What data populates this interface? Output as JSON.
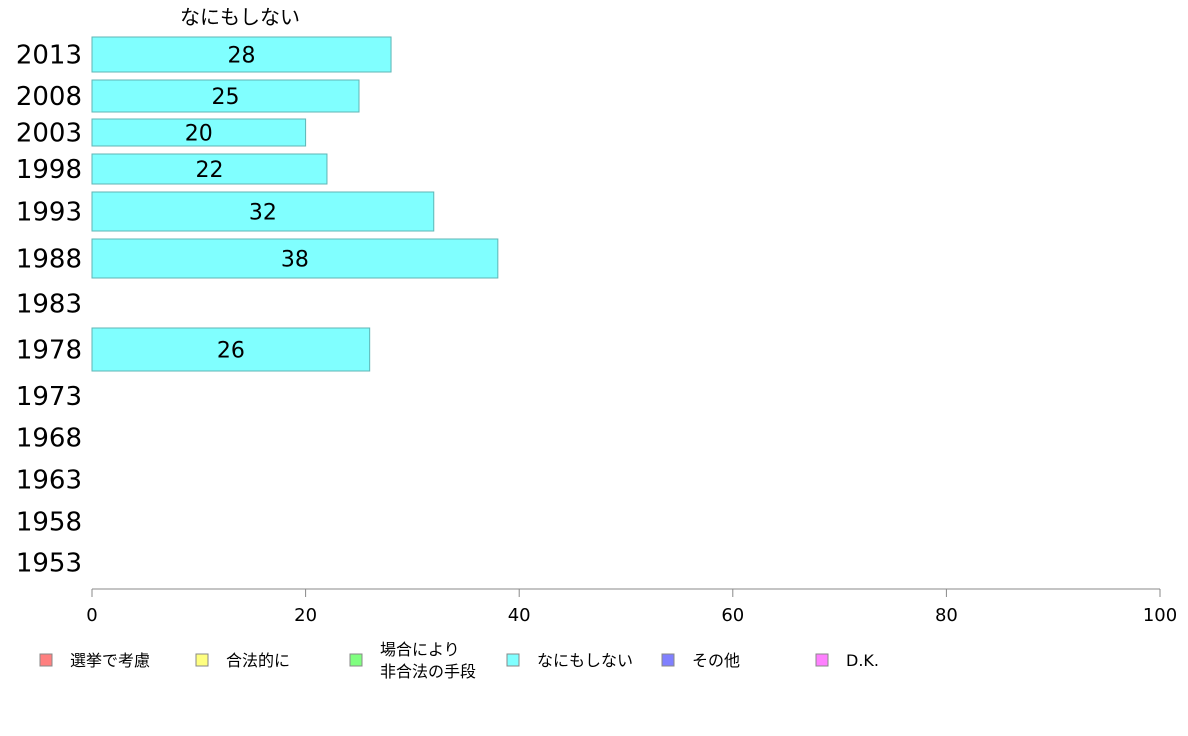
{
  "chart_data": {
    "type": "bar",
    "orientation": "horizontal",
    "title": "なにもしない",
    "categories": [
      "2013",
      "2008",
      "2003",
      "1998",
      "1993",
      "1988",
      "1983",
      "1978",
      "1973",
      "1968",
      "1963",
      "1958",
      "1953"
    ],
    "series": [
      {
        "name": "なにもしない",
        "color": "#80ffff",
        "values": [
          28,
          25,
          20,
          22,
          32,
          38,
          null,
          26,
          null,
          null,
          null,
          null,
          null
        ]
      }
    ],
    "xlim": [
      0,
      100
    ],
    "xticks": [
      "0",
      "20",
      "40",
      "60",
      "80",
      "100"
    ],
    "grid": false,
    "legend_position": "bottom",
    "legend": [
      {
        "label": "選挙で考慮",
        "color": "#ff8080"
      },
      {
        "label": "合法的に",
        "color": "#ffff80"
      },
      {
        "label": "場合により\n非合法の手段",
        "color": "#80ff80"
      },
      {
        "label": "なにもしない",
        "color": "#80ffff"
      },
      {
        "label": "その他",
        "color": "#8080ff"
      },
      {
        "label": "D.K.",
        "color": "#ff80ff"
      }
    ]
  }
}
